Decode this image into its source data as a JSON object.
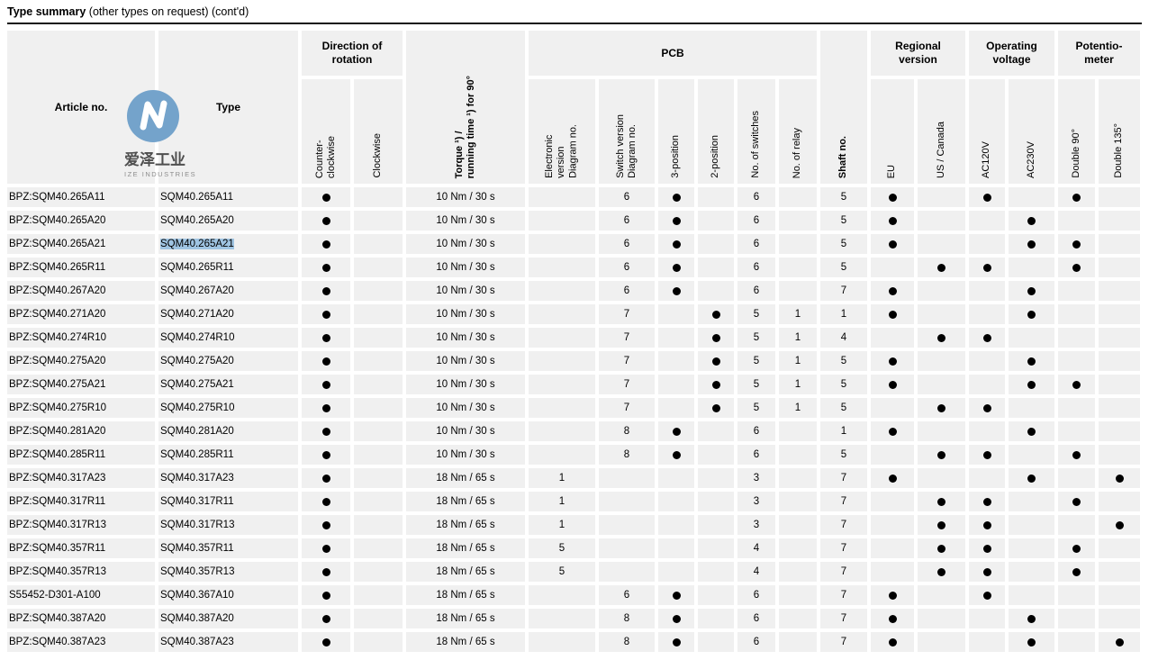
{
  "title": {
    "bold": "Type summary",
    "rest": " (other types on request) (cont'd)"
  },
  "logo": {
    "chinese": "爱泽工业",
    "latin": "IZE INDUSTRIES",
    "circle_color": "#74a3cb",
    "glyph": "N"
  },
  "colors": {
    "cell_bg": "#f0f0f0",
    "selection": "#9fc4e2",
    "dot": "#000000",
    "rule": "#151515"
  },
  "header": {
    "article": "Article no.",
    "type": "Type",
    "direction_group": "Direction of\nrotation",
    "ccw": "Counter-\nclockwise",
    "cw": "Clockwise",
    "torque": "Torque ¹) /\nrunning time ¹) for 90°",
    "pcb_group": "PCB",
    "elec": "Electronic\nversion\nDiagram no.",
    "swver": "Switch version\nDiagram no.",
    "pos3": "3-position",
    "pos2": "2-position",
    "nsw": "No. of switches",
    "nrelay": "No. of relay",
    "shaft": "Shaft no.",
    "regional_group": "Regional\nversion",
    "eu": "EU",
    "us": "US / Canada",
    "voltage_group": "Operating\nvoltage",
    "ac120": "AC120V",
    "ac230": "AC230V",
    "pot_group": "Potentio-\nmeter",
    "d90": "Double 90°",
    "d135": "Double 135°"
  },
  "row_keys": [
    "article",
    "type",
    "ccw",
    "cw",
    "torque",
    "elec",
    "swver",
    "pos3",
    "pos2",
    "nsw",
    "nrelay",
    "shaft",
    "eu",
    "us",
    "ac120",
    "ac230",
    "d90",
    "d135"
  ],
  "selection": {
    "row": 2,
    "key": "type"
  },
  "rows": [
    [
      "BPZ:SQM40.265A11",
      "SQM40.265A11",
      true,
      "",
      "10 Nm / 30 s",
      "",
      "6",
      true,
      "",
      "6",
      "",
      "5",
      true,
      "",
      true,
      "",
      true,
      ""
    ],
    [
      "BPZ:SQM40.265A20",
      "SQM40.265A20",
      true,
      "",
      "10 Nm / 30 s",
      "",
      "6",
      true,
      "",
      "6",
      "",
      "5",
      true,
      "",
      "",
      true,
      "",
      ""
    ],
    [
      "BPZ:SQM40.265A21",
      "SQM40.265A21",
      true,
      "",
      "10 Nm / 30 s",
      "",
      "6",
      true,
      "",
      "6",
      "",
      "5",
      true,
      "",
      "",
      true,
      true,
      ""
    ],
    [
      "BPZ:SQM40.265R11",
      "SQM40.265R11",
      true,
      "",
      "10 Nm / 30 s",
      "",
      "6",
      true,
      "",
      "6",
      "",
      "5",
      "",
      true,
      true,
      "",
      true,
      ""
    ],
    [
      "BPZ:SQM40.267A20",
      "SQM40.267A20",
      true,
      "",
      "10 Nm / 30 s",
      "",
      "6",
      true,
      "",
      "6",
      "",
      "7",
      true,
      "",
      "",
      true,
      "",
      ""
    ],
    [
      "BPZ:SQM40.271A20",
      "SQM40.271A20",
      true,
      "",
      "10 Nm / 30 s",
      "",
      "7",
      "",
      true,
      "5",
      "1",
      "1",
      true,
      "",
      "",
      true,
      "",
      ""
    ],
    [
      "BPZ:SQM40.274R10",
      "SQM40.274R10",
      true,
      "",
      "10 Nm / 30 s",
      "",
      "7",
      "",
      true,
      "5",
      "1",
      "4",
      "",
      true,
      true,
      "",
      "",
      ""
    ],
    [
      "BPZ:SQM40.275A20",
      "SQM40.275A20",
      true,
      "",
      "10 Nm / 30 s",
      "",
      "7",
      "",
      true,
      "5",
      "1",
      "5",
      true,
      "",
      "",
      true,
      "",
      ""
    ],
    [
      "BPZ:SQM40.275A21",
      "SQM40.275A21",
      true,
      "",
      "10 Nm / 30 s",
      "",
      "7",
      "",
      true,
      "5",
      "1",
      "5",
      true,
      "",
      "",
      true,
      true,
      ""
    ],
    [
      "BPZ:SQM40.275R10",
      "SQM40.275R10",
      true,
      "",
      "10 Nm / 30 s",
      "",
      "7",
      "",
      true,
      "5",
      "1",
      "5",
      "",
      true,
      true,
      "",
      "",
      ""
    ],
    [
      "BPZ:SQM40.281A20",
      "SQM40.281A20",
      true,
      "",
      "10 Nm / 30 s",
      "",
      "8",
      true,
      "",
      "6",
      "",
      "1",
      true,
      "",
      "",
      true,
      "",
      ""
    ],
    [
      "BPZ:SQM40.285R11",
      "SQM40.285R11",
      true,
      "",
      "10 Nm / 30 s",
      "",
      "8",
      true,
      "",
      "6",
      "",
      "5",
      "",
      true,
      true,
      "",
      true,
      ""
    ],
    [
      "BPZ:SQM40.317A23",
      "SQM40.317A23",
      true,
      "",
      "18 Nm / 65 s",
      "1",
      "",
      "",
      "",
      "3",
      "",
      "7",
      true,
      "",
      "",
      true,
      "",
      true
    ],
    [
      "BPZ:SQM40.317R11",
      "SQM40.317R11",
      true,
      "",
      "18 Nm / 65 s",
      "1",
      "",
      "",
      "",
      "3",
      "",
      "7",
      "",
      true,
      true,
      "",
      true,
      ""
    ],
    [
      "BPZ:SQM40.317R13",
      "SQM40.317R13",
      true,
      "",
      "18 Nm / 65 s",
      "1",
      "",
      "",
      "",
      "3",
      "",
      "7",
      "",
      true,
      true,
      "",
      "",
      true
    ],
    [
      "BPZ:SQM40.357R11",
      "SQM40.357R11",
      true,
      "",
      "18 Nm / 65 s",
      "5",
      "",
      "",
      "",
      "4",
      "",
      "7",
      "",
      true,
      true,
      "",
      true,
      ""
    ],
    [
      "BPZ:SQM40.357R13",
      "SQM40.357R13",
      true,
      "",
      "18 Nm / 65 s",
      "5",
      "",
      "",
      "",
      "4",
      "",
      "7",
      "",
      true,
      true,
      "",
      true,
      ""
    ],
    [
      "S55452-D301-A100",
      "SQM40.367A10",
      true,
      "",
      "18 Nm / 65 s",
      "",
      "6",
      true,
      "",
      "6",
      "",
      "7",
      true,
      "",
      true,
      "",
      "",
      ""
    ],
    [
      "BPZ:SQM40.387A20",
      "SQM40.387A20",
      true,
      "",
      "18 Nm / 65 s",
      "",
      "8",
      true,
      "",
      "6",
      "",
      "7",
      true,
      "",
      "",
      true,
      "",
      ""
    ],
    [
      "BPZ:SQM40.387A23",
      "SQM40.387A23",
      true,
      "",
      "18 Nm / 65 s",
      "",
      "8",
      true,
      "",
      "6",
      "",
      "7",
      true,
      "",
      "",
      true,
      "",
      true
    ]
  ]
}
